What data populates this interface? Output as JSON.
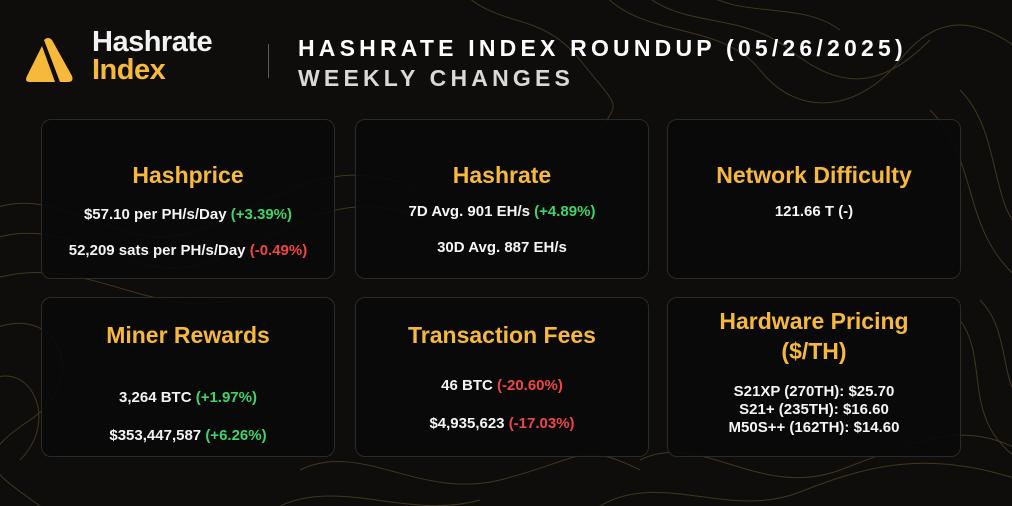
{
  "brand": {
    "line1": "Hashrate",
    "line2": "Index"
  },
  "header": {
    "title_line1": "HASHRATE INDEX ROUNDUP (05/26/2025)",
    "title_line2": "WEEKLY CHANGES"
  },
  "colors": {
    "accent": "#f6b93b",
    "positive": "#3fd46a",
    "negative": "#ee4646",
    "background": "#0e0d0b"
  },
  "cards": {
    "hashprice": {
      "title": "Hashprice",
      "usd": {
        "text": "$57.10 per PH/s/Day ",
        "change": "(+3.39%)"
      },
      "sats": {
        "text": "52,209 sats per PH/s/Day ",
        "change": "(-0.49%)"
      }
    },
    "hashrate": {
      "title": "Hashrate",
      "avg7d": {
        "text": "7D Avg. 901 EH/s ",
        "change": "(+4.89%)"
      },
      "avg30d": {
        "text": "30D Avg. 887 EH/s"
      }
    },
    "difficulty": {
      "title": "Network Difficulty",
      "value": "121.66 T (-)"
    },
    "miner_rewards": {
      "title": "Miner Rewards",
      "btc": {
        "text": "3,264 BTC ",
        "change": "(+1.97%)"
      },
      "usd": {
        "text": "$353,447,587 ",
        "change": "(+6.26%)"
      }
    },
    "tx_fees": {
      "title": "Transaction Fees",
      "btc": {
        "text": "46 BTC ",
        "change": "(-20.60%)"
      },
      "usd": {
        "text": "$4,935,623 ",
        "change": "(-17.03%)"
      }
    },
    "hardware": {
      "title_line1": "Hardware Pricing",
      "title_line2": "($/TH)",
      "rows": [
        "S21XP (270TH): $25.70",
        "S21+ (235TH): $16.60",
        "M50S++ (162TH): $14.60"
      ]
    }
  }
}
